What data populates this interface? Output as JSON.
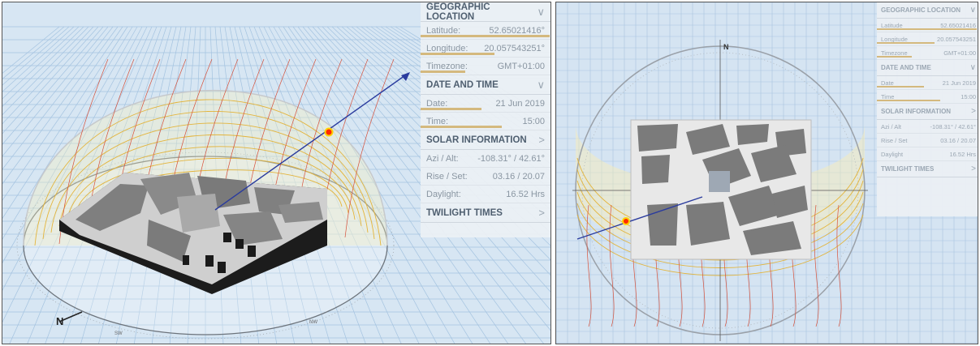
{
  "left_view": {
    "compass": {
      "north": "N",
      "sw": "SW",
      "nw": "NW"
    },
    "panel": {
      "geographic": {
        "title": "GEOGRAPHIC LOCATION",
        "rows": [
          {
            "label": "Latitude:",
            "value": "52.65021416°",
            "bar": 0.98
          },
          {
            "label": "Longitude:",
            "value": "20.057543251°",
            "bar": 0.56
          },
          {
            "label": "Timezone:",
            "value": "GMT+01:00",
            "bar": 0.34
          }
        ]
      },
      "datetime": {
        "title": "DATE AND TIME",
        "rows": [
          {
            "label": "Date:",
            "value": "21 Jun 2019",
            "bar": 0.46
          },
          {
            "label": "Time:",
            "value": "15:00",
            "bar": 0.62
          }
        ]
      },
      "solar": {
        "title": "SOLAR INFORMATION",
        "rows": [
          {
            "label": "Azi / Alt:",
            "value": "-108.31° / 42.61°"
          },
          {
            "label": "Rise / Set:",
            "value": "03.16 / 20.07"
          },
          {
            "label": "Daylight:",
            "value": "16.52 Hrs"
          }
        ]
      },
      "twilight": {
        "title": "TWILIGHT TIMES"
      }
    }
  },
  "right_view": {
    "compass": {
      "north": "N"
    },
    "panel": {
      "geographic": {
        "title": "GEOGRAPHIC LOCATION",
        "rows": [
          {
            "label": "Latitude",
            "value": "52.65021416",
            "bar": 0.98
          },
          {
            "label": "Longitude",
            "value": "20.057543251",
            "bar": 0.56
          },
          {
            "label": "Timezone",
            "value": "GMT+01:00",
            "bar": 0.34
          }
        ]
      },
      "datetime": {
        "title": "DATE AND TIME",
        "rows": [
          {
            "label": "Date",
            "value": "21 Jun 2019",
            "bar": 0.46
          },
          {
            "label": "Time",
            "value": "15:00",
            "bar": 0.62
          }
        ]
      },
      "solar": {
        "title": "SOLAR INFORMATION",
        "rows": [
          {
            "label": "Azi / Alt",
            "value": "-108.31° / 42.61°"
          },
          {
            "label": "Rise / Set",
            "value": "03.16 / 20.07"
          },
          {
            "label": "Daylight",
            "value": "16.52 Hrs"
          }
        ]
      },
      "twilight": {
        "title": "TWILIGHT TIMES"
      }
    }
  },
  "colors": {
    "sky": "#d7e6f3",
    "grid": "#9fc0df",
    "sunpath": "#e3b43b",
    "analemma": "#d6503a",
    "building": "#808080",
    "ground": "#cfcfcf",
    "vector": "#2a3b9e",
    "sun": "#ff2a00",
    "bar": "#d4b97e"
  }
}
